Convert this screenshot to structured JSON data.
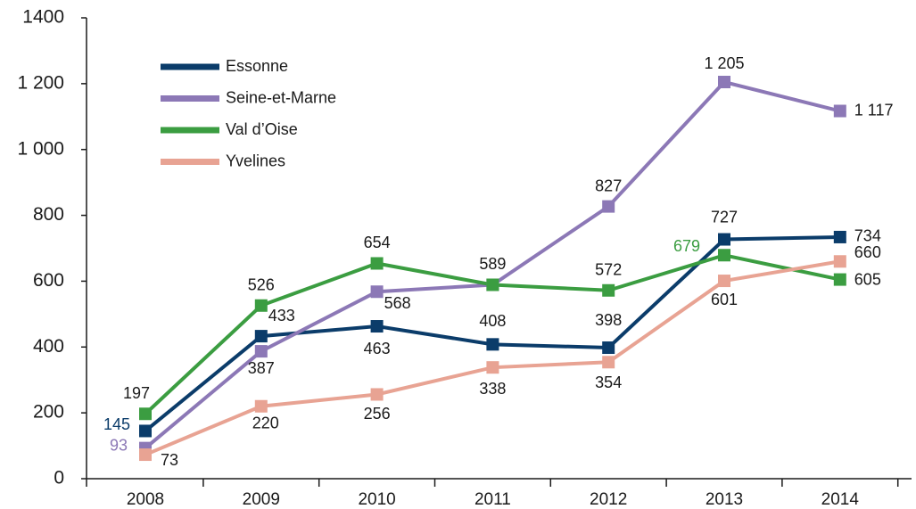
{
  "chart_data": {
    "type": "line",
    "categories": [
      "2008",
      "2009",
      "2010",
      "2011",
      "2012",
      "2013",
      "2014"
    ],
    "series": [
      {
        "name": "Essonne",
        "color": "#0b3c6a",
        "values": [
          145,
          433,
          463,
          408,
          398,
          727,
          734
        ]
      },
      {
        "name": "Seine-et-Marne",
        "color": "#8c78b6",
        "values": [
          93,
          387,
          568,
          589,
          827,
          1205,
          1117
        ],
        "value_labels": [
          "93",
          "387",
          "568",
          null,
          "827",
          "1 205",
          "1 117"
        ]
      },
      {
        "name": "Val d’Oise",
        "color": "#3b9d41",
        "values": [
          197,
          526,
          654,
          589,
          572,
          679,
          605
        ]
      },
      {
        "name": "Yvelines",
        "color": "#e8a393",
        "values": [
          73,
          220,
          256,
          338,
          354,
          601,
          660
        ]
      }
    ],
    "ylim": [
      0,
      1400
    ],
    "yticks": [
      0,
      200,
      400,
      600,
      800,
      {
        "value": 1000,
        "label": "1 000"
      },
      {
        "value": 1200,
        "label": "1 200"
      },
      1400
    ],
    "legend": "upper left"
  }
}
